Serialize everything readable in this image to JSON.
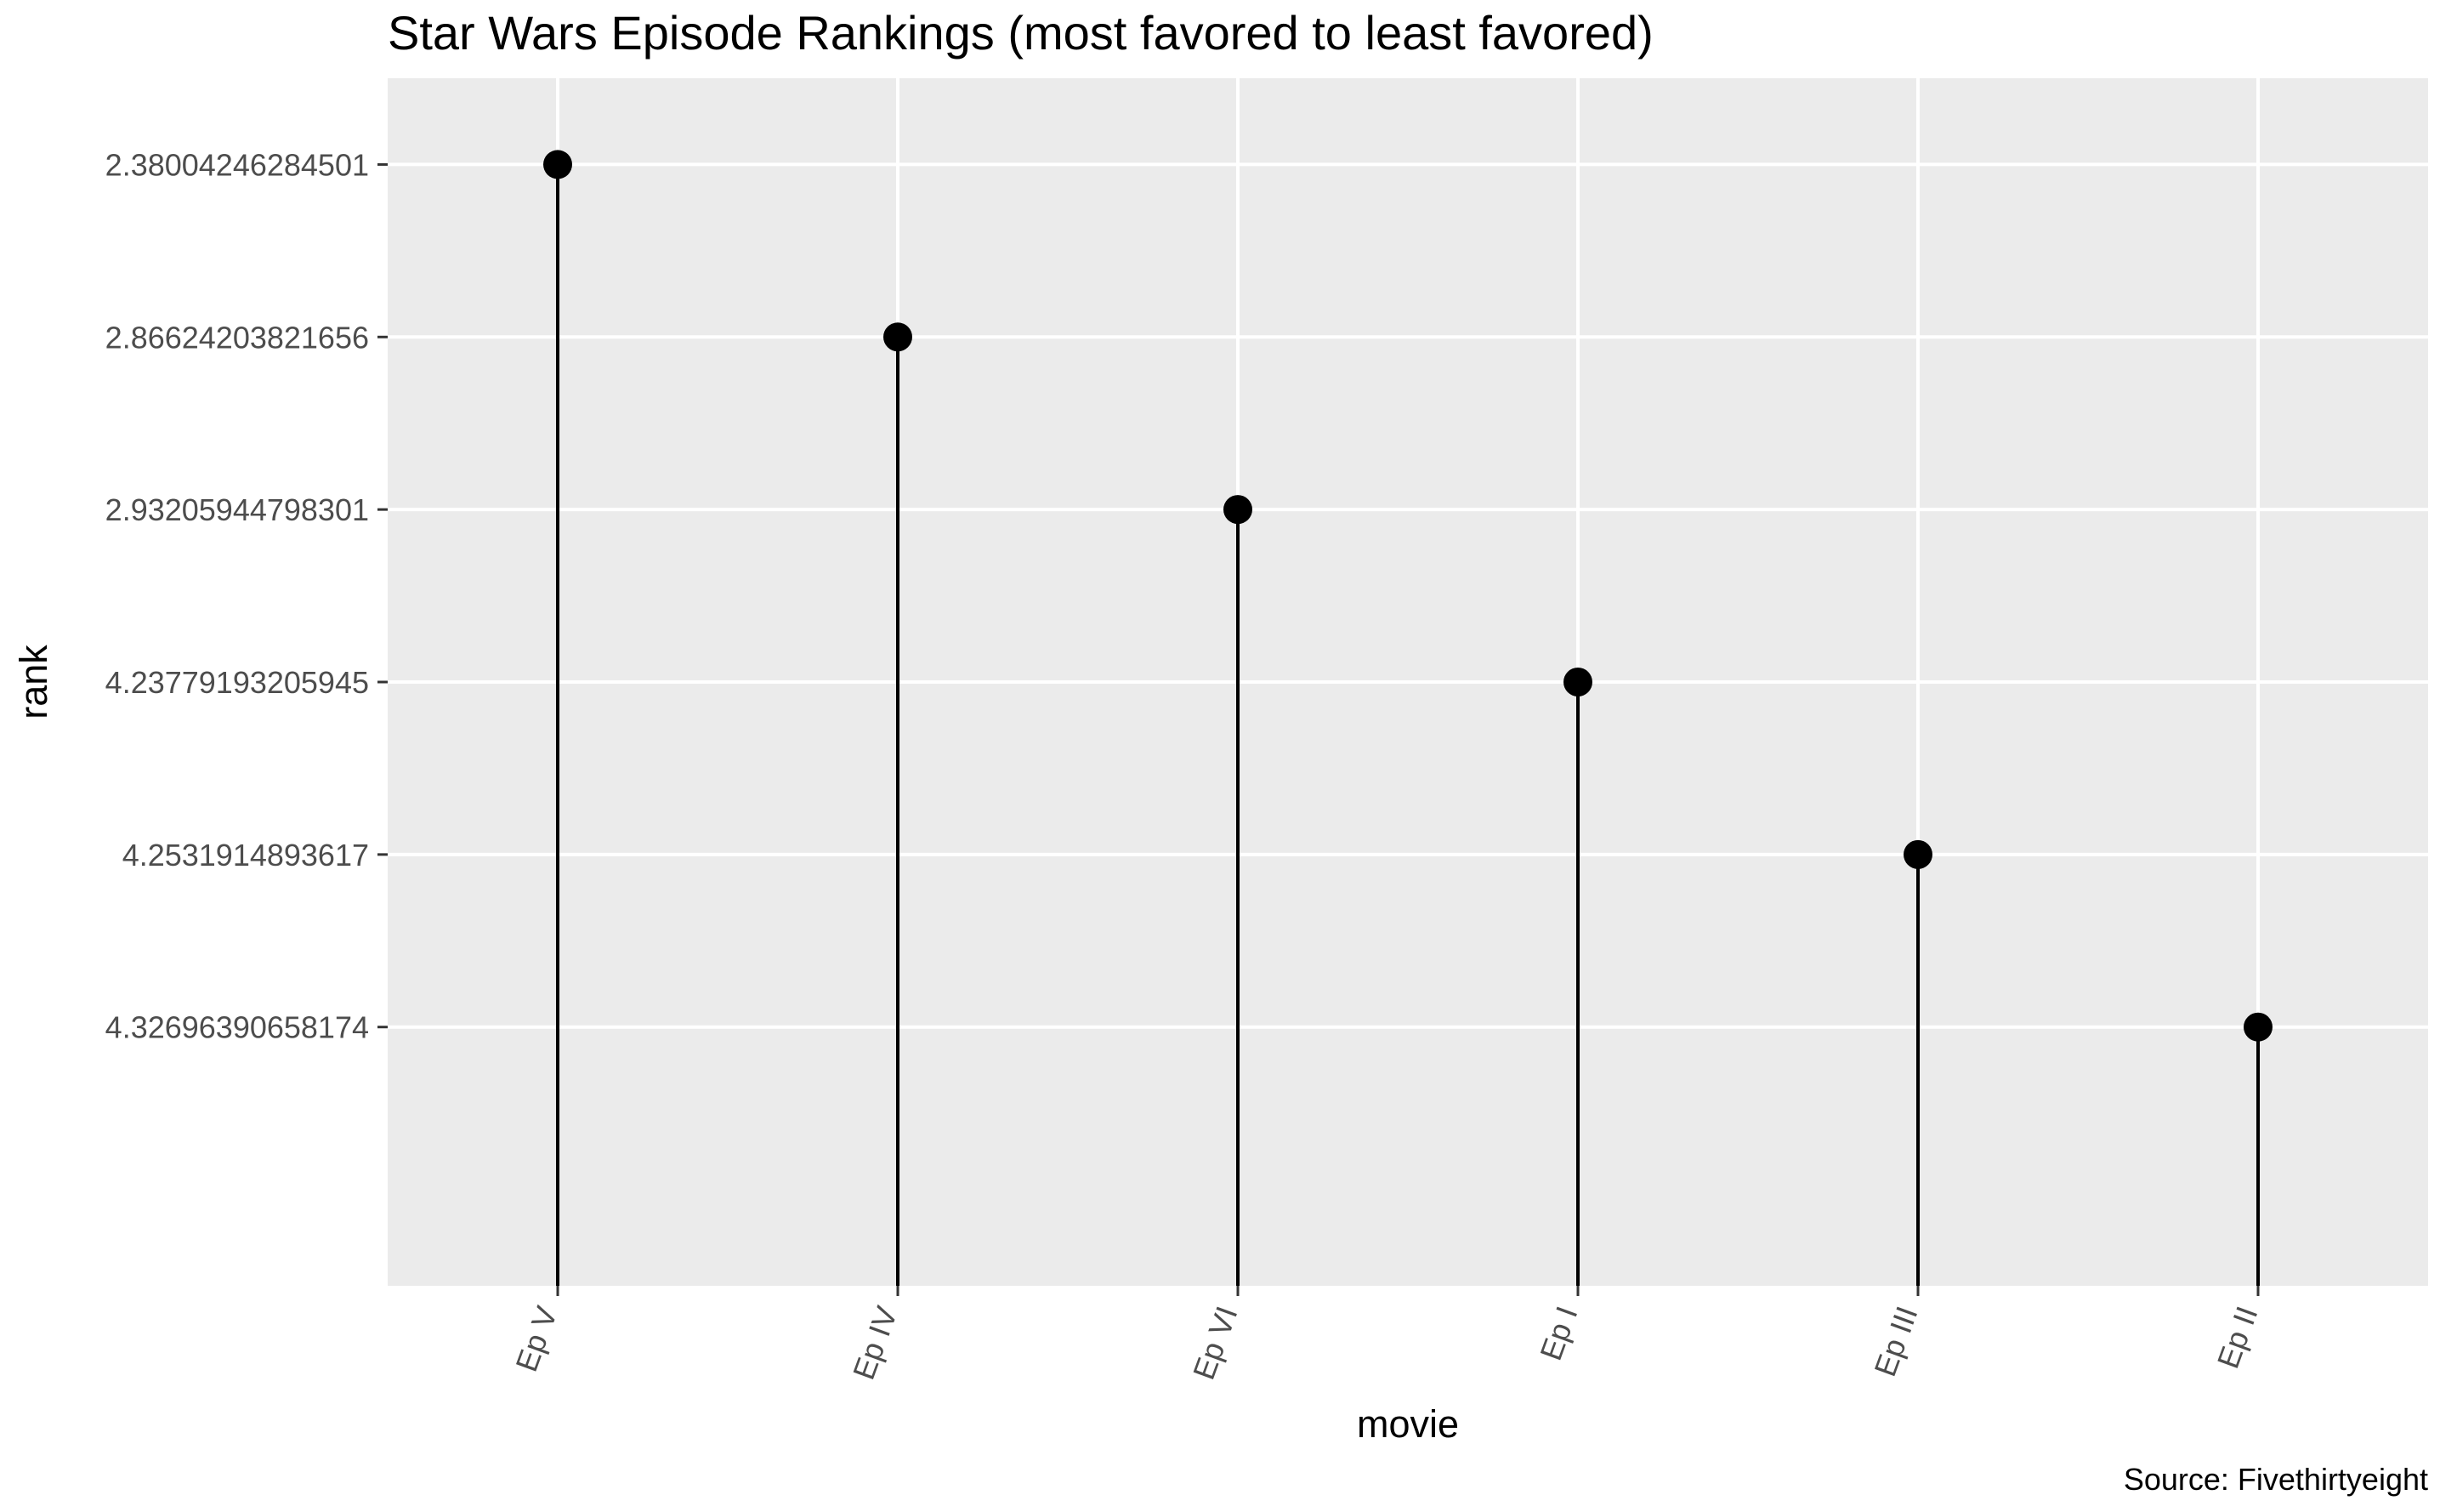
{
  "chart_data": {
    "type": "lollipop",
    "title": "Star Wars Episode Rankings (most favored to least favored)",
    "xlabel": "movie",
    "ylabel": "rank",
    "caption": "Source: Fivethirtyeight",
    "categories": [
      "Ep V",
      "Ep IV",
      "Ep VI",
      "Ep I",
      "Ep III",
      "Ep II"
    ],
    "y_tick_labels": [
      "2.38004246284501",
      "2.86624203821656",
      "2.93205944798301",
      "4.23779193205945",
      "4.2531914893617",
      "4.32696390658174"
    ],
    "values": [
      2.38004246284501,
      2.86624203821656,
      2.93205944798301,
      4.23779193205945,
      4.2531914893617,
      4.32696390658174
    ],
    "y_axis": "discrete",
    "grid": true,
    "legend": "none",
    "colors": {
      "panel": "#ebebeb",
      "grid": "#ffffff",
      "mark": "#000000",
      "tick_text": "#4d4d4d"
    }
  }
}
